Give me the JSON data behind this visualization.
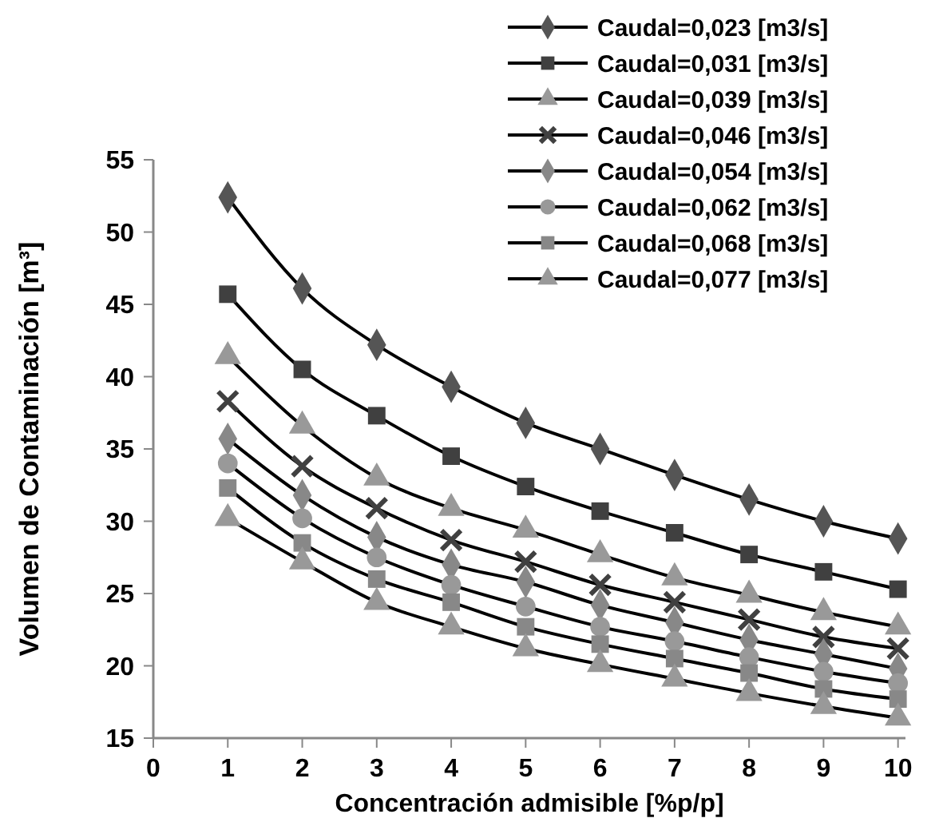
{
  "chart_data": {
    "type": "line",
    "xlabel": "Concentración admisible [%p/p]",
    "ylabel": "Volumen de Contaminación [m³]",
    "x": [
      1,
      2,
      3,
      4,
      5,
      6,
      7,
      8,
      9,
      10
    ],
    "xlim": [
      0,
      10.1
    ],
    "xticks": [
      0,
      1,
      2,
      3,
      4,
      5,
      6,
      7,
      8,
      9,
      10
    ],
    "ylim": [
      15,
      55
    ],
    "yticks": [
      15,
      20,
      25,
      30,
      35,
      40,
      45,
      50,
      55
    ],
    "grid": false,
    "legend": "top right",
    "series": [
      {
        "name": "Caudal=0,023 [m3/s]",
        "color": "#555555",
        "marker": "diamond",
        "values": [
          52.4,
          46.1,
          42.2,
          39.3,
          36.8,
          35.0,
          33.2,
          31.5,
          30.0,
          28.8
        ]
      },
      {
        "name": "Caudal=0,031 [m3/s]",
        "color": "#404040",
        "marker": "square",
        "values": [
          45.7,
          40.5,
          37.3,
          34.5,
          32.4,
          30.7,
          29.2,
          27.7,
          26.5,
          25.3
        ]
      },
      {
        "name": "Caudal=0,039 [m3/s]",
        "color": "#999999",
        "marker": "triangle",
        "values": [
          41.4,
          36.6,
          33.0,
          30.9,
          29.4,
          27.7,
          26.1,
          24.9,
          23.7,
          22.7
        ]
      },
      {
        "name": "Caudal=0,046 [m3/s]",
        "color": "#404040",
        "marker": "cross",
        "values": [
          38.3,
          33.8,
          30.9,
          28.7,
          27.2,
          25.6,
          24.4,
          23.2,
          22.0,
          21.2
        ]
      },
      {
        "name": "Caudal=0,054 [m3/s]",
        "color": "#888888",
        "marker": "diamond",
        "values": [
          35.7,
          31.8,
          28.9,
          27.0,
          25.8,
          24.2,
          23.0,
          21.8,
          20.8,
          19.8
        ]
      },
      {
        "name": "Caudal=0,062 [m3/s]",
        "color": "#999999",
        "marker": "circle",
        "values": [
          34.0,
          30.2,
          27.5,
          25.6,
          24.1,
          22.7,
          21.7,
          20.6,
          19.6,
          18.8
        ]
      },
      {
        "name": "Caudal=0,068 [m3/s]",
        "color": "#888888",
        "marker": "square",
        "values": [
          32.3,
          28.5,
          26.0,
          24.4,
          22.7,
          21.5,
          20.5,
          19.5,
          18.4,
          17.7
        ]
      },
      {
        "name": "Caudal=0,077 [m3/s]",
        "color": "#999999",
        "marker": "triangle",
        "values": [
          30.2,
          27.2,
          24.4,
          22.7,
          21.2,
          20.1,
          19.1,
          18.1,
          17.2,
          16.4
        ]
      }
    ]
  }
}
